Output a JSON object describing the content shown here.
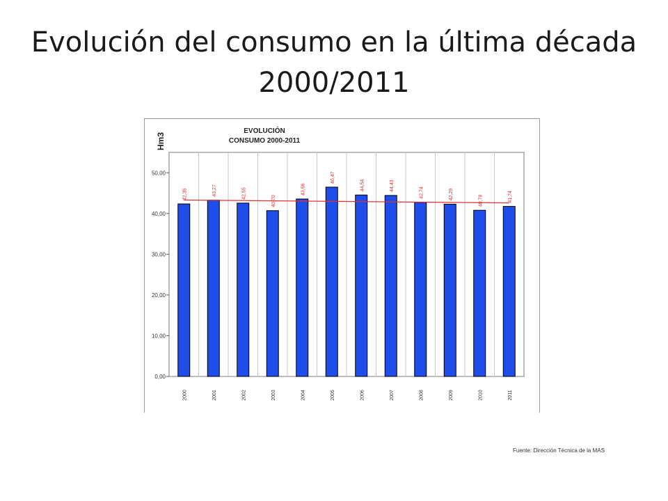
{
  "slide": {
    "title": "Evolución del consumo en la última década 2000/2011",
    "source": "Fuente: Dirección Técnica de la MAS"
  },
  "chart_data": {
    "type": "bar",
    "title": "EVOLUCIÓN",
    "subtitle": "CONSUMO 2000-2011",
    "ylabel": "Hm3",
    "xlabel": "",
    "categories": [
      "2000",
      "2001",
      "2002",
      "2003",
      "2004",
      "2005",
      "2006",
      "2007",
      "2008",
      "2009",
      "2010",
      "2011"
    ],
    "values": [
      42.35,
      43.27,
      42.55,
      40.7,
      43.56,
      46.47,
      44.54,
      44.43,
      42.74,
      42.29,
      40.79,
      41.74
    ],
    "value_labels": [
      "42,35",
      "43,27",
      "42,55",
      "40,70",
      "43,56",
      "46,47",
      "44,54",
      "44,43",
      "42,74",
      "42,29",
      "40,79",
      "41,74"
    ],
    "yticks": [
      0,
      10,
      20,
      30,
      40,
      50
    ],
    "ytick_labels": [
      "0,00",
      "10,00",
      "20,00",
      "30,00",
      "40,00",
      "50,00"
    ],
    "ylim": [
      0,
      55
    ],
    "grid": "vertical",
    "trendline": {
      "start": 43.3,
      "end": 42.6,
      "color": "#e03030"
    },
    "colors": {
      "bar": "#1f4de8",
      "bar_stroke": "#000000",
      "label": "#e03030",
      "grid": "#c8c8c8"
    }
  }
}
